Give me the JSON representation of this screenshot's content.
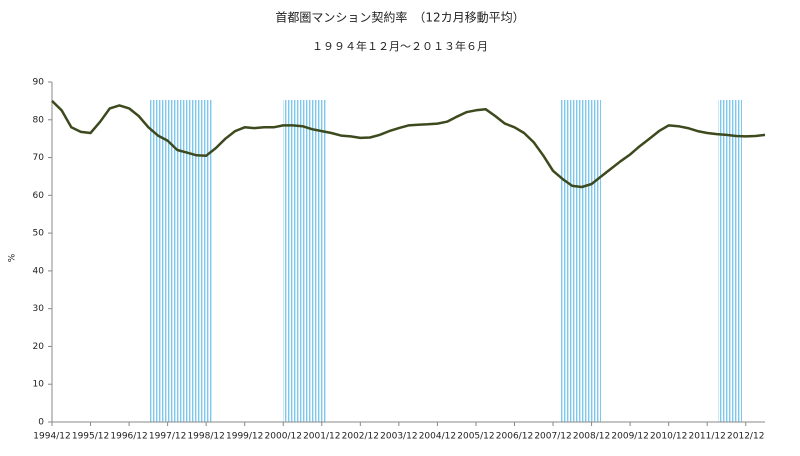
{
  "chart_data": {
    "type": "line",
    "title": "首都圏マンション契約率　（12カ月移動平均）",
    "subtitle": "１９９４年１２月～２０１３年６月",
    "y_label": "%",
    "categories": [
      "1994/12",
      null,
      null,
      null,
      "1995/12",
      null,
      null,
      null,
      "1996/12",
      null,
      null,
      null,
      "1997/12",
      null,
      null,
      null,
      "1998/12",
      null,
      null,
      null,
      "1999/12",
      null,
      null,
      null,
      "2000/12",
      null,
      null,
      null,
      "2001/12",
      null,
      null,
      null,
      "2002/12",
      null,
      null,
      null,
      "2003/12",
      null,
      null,
      null,
      "2004/12",
      null,
      null,
      null,
      "2005/12",
      null,
      null,
      null,
      "2006/12",
      null,
      null,
      null,
      "2007/12",
      null,
      null,
      null,
      "2008/12",
      null,
      null,
      null,
      "2009/12",
      null,
      null,
      null,
      "2010/12",
      null,
      null,
      null,
      "2011/12",
      null,
      null,
      null,
      "2012/12",
      null,
      null
    ],
    "series": [
      {
        "name": "契約率",
        "color": "#3d4a1e",
        "values": [
          85,
          82.5,
          78,
          76.8,
          76.5,
          79.5,
          83,
          83.8,
          83,
          81,
          78,
          75.8,
          74.5,
          72,
          71.3,
          70.6,
          70.5,
          72.5,
          75,
          77,
          78,
          77.8,
          78,
          78,
          78.5,
          78.5,
          78.3,
          77.5,
          77,
          76.5,
          75.8,
          75.6,
          75.2,
          75.3,
          76,
          77,
          77.8,
          78.5,
          78.7,
          78.8,
          79,
          79.5,
          80.8,
          82,
          82.5,
          82.8,
          81,
          79,
          78,
          76.5,
          74,
          70.5,
          66.5,
          64.3,
          62.5,
          62.2,
          63,
          65,
          67,
          69,
          70.8,
          73,
          75,
          77,
          78.5,
          78.3,
          77.8,
          77,
          76.5,
          76.2,
          76,
          75.7,
          75.6,
          75.7,
          76
        ]
      }
    ],
    "ylim": [
      0,
      90
    ],
    "yticks": [
      0,
      10,
      20,
      30,
      40,
      50,
      60,
      70,
      80,
      90
    ],
    "grid": false
  }
}
